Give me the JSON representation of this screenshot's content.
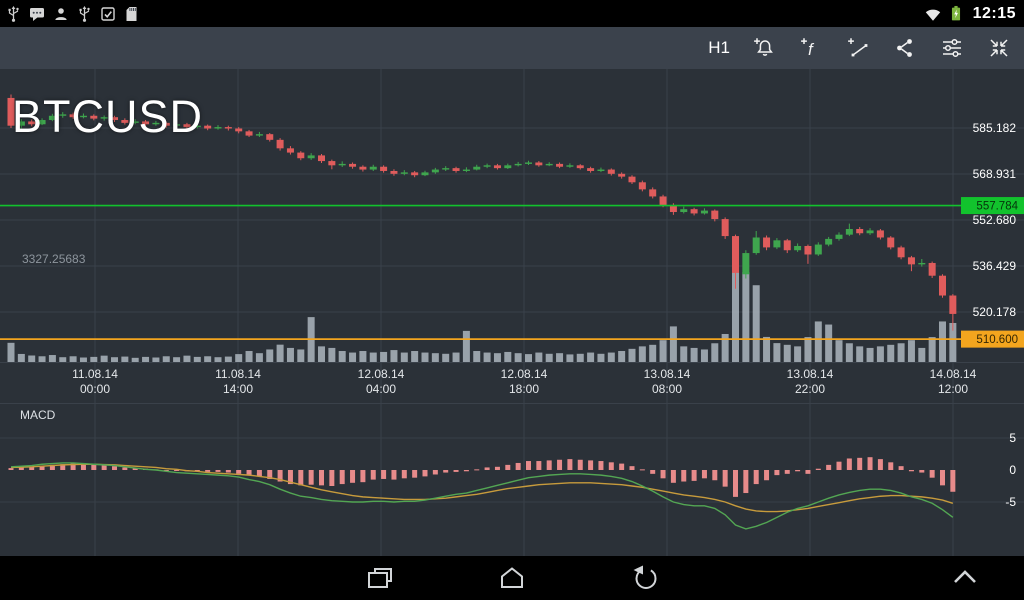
{
  "status_bar": {
    "time": "12:15",
    "left_icons": [
      "usb-icon",
      "message-icon",
      "user-icon",
      "usb-connected-icon",
      "download-complete-icon",
      "sd-card-icon"
    ],
    "right_icons": [
      "wifi-icon",
      "battery-icon"
    ]
  },
  "toolbar": {
    "timeframe_label": "H1",
    "icons": [
      "alarm-add-icon",
      "indicator-add-icon",
      "object-add-icon",
      "share-icon",
      "chart-settings-icon",
      "collapse-icon"
    ]
  },
  "chart": {
    "symbol": "BTCUSD",
    "volume_scale_label": "3327.25683",
    "indicator_label": "MACD",
    "price_axis_labels": [
      "585.182",
      "568.931",
      "552.680",
      "536.429",
      "520.178"
    ],
    "price_axis_values": [
      585.182,
      568.931,
      552.68,
      536.429,
      520.178
    ],
    "level_lines": [
      {
        "label": "557.784",
        "value": 557.784,
        "color": "#12c22d",
        "text_color": "#06330c"
      },
      {
        "label": "510.600",
        "value": 510.6,
        "color": "#f3a51e",
        "text_color": "#342703"
      }
    ],
    "time_axis": [
      {
        "date": "11.08.14",
        "time": "00:00"
      },
      {
        "date": "11.08.14",
        "time": "14:00"
      },
      {
        "date": "12.08.14",
        "time": "04:00"
      },
      {
        "date": "12.08.14",
        "time": "18:00"
      },
      {
        "date": "13.08.14",
        "time": "08:00"
      },
      {
        "date": "13.08.14",
        "time": "22:00"
      },
      {
        "date": "14.08.14",
        "time": "12:00"
      }
    ],
    "macd_axis_labels": [
      "5",
      "0",
      "-5"
    ],
    "macd_axis_values": [
      5,
      0,
      -5
    ]
  },
  "colors": {
    "candle_up": "#3fa64e",
    "candle_down": "#e05c5c",
    "volume": "#a9b2ba",
    "macd_hist": "#e78b8b",
    "macd_line": "#53a653",
    "signal_line": "#c79b3c",
    "grid": "#3a414a"
  },
  "chart_data": {
    "type": "candlestick",
    "symbol": "BTCUSD",
    "timeframe": "H1",
    "x_axis": [
      "11.08.14 00:00",
      "11.08.14 14:00",
      "12.08.14 04:00",
      "12.08.14 18:00",
      "13.08.14 08:00",
      "13.08.14 22:00",
      "14.08.14 12:00"
    ],
    "price_axis_ticks": [
      585.182,
      568.931,
      552.68,
      536.429,
      520.178
    ],
    "level_lines": [
      557.784,
      510.6
    ],
    "volume_scale_max": 3327.25683,
    "candles": [
      [
        595.8,
        597.0,
        585.2,
        586.0
      ],
      [
        586.0,
        588.3,
        585.0,
        587.5
      ],
      [
        587.5,
        588.2,
        585.8,
        586.5
      ],
      [
        586.5,
        588.6,
        586.2,
        588.0
      ],
      [
        588.0,
        590.2,
        587.6,
        589.5
      ],
      [
        589.5,
        590.8,
        588.8,
        590.0
      ],
      [
        590.0,
        590.6,
        588.4,
        589.0
      ],
      [
        589.0,
        590.3,
        588.6,
        589.5
      ],
      [
        589.5,
        590.0,
        587.9,
        588.5
      ],
      [
        588.5,
        589.6,
        587.8,
        589.0
      ],
      [
        589.0,
        589.5,
        587.3,
        588.0
      ],
      [
        588.0,
        588.6,
        586.4,
        587.0
      ],
      [
        587.0,
        588.3,
        586.5,
        587.5
      ],
      [
        587.5,
        588.0,
        585.9,
        586.5
      ],
      [
        586.5,
        587.7,
        586.0,
        587.0
      ],
      [
        587.0,
        587.4,
        585.3,
        586.0
      ],
      [
        586.0,
        587.2,
        585.5,
        586.5
      ],
      [
        586.5,
        587.0,
        584.9,
        585.5
      ],
      [
        585.5,
        586.7,
        585.0,
        586.0
      ],
      [
        586.0,
        586.4,
        584.4,
        585.0
      ],
      [
        585.0,
        586.2,
        584.6,
        585.5
      ],
      [
        585.5,
        586.0,
        584.3,
        585.0
      ],
      [
        585.0,
        585.5,
        583.3,
        584.0
      ],
      [
        584.0,
        584.5,
        582.0,
        582.5
      ],
      [
        582.5,
        583.8,
        582.0,
        583.0
      ],
      [
        583.0,
        583.4,
        580.4,
        581.0
      ],
      [
        581.0,
        581.6,
        577.2,
        578.0
      ],
      [
        578.0,
        578.8,
        575.8,
        576.5
      ],
      [
        576.5,
        577.0,
        573.8,
        574.5
      ],
      [
        574.5,
        576.3,
        573.9,
        575.5
      ],
      [
        575.5,
        576.0,
        572.8,
        573.5
      ],
      [
        573.5,
        574.0,
        570.6,
        572.0
      ],
      [
        572.0,
        573.4,
        571.4,
        572.5
      ],
      [
        572.5,
        573.0,
        570.8,
        571.5
      ],
      [
        571.5,
        572.0,
        569.8,
        570.5
      ],
      [
        570.5,
        572.2,
        570.0,
        571.5
      ],
      [
        571.5,
        572.0,
        569.4,
        570.0
      ],
      [
        570.0,
        570.6,
        568.3,
        569.0
      ],
      [
        569.0,
        570.3,
        568.5,
        569.5
      ],
      [
        569.5,
        570.0,
        567.8,
        568.5
      ],
      [
        568.5,
        570.1,
        568.2,
        569.5
      ],
      [
        569.5,
        571.1,
        569.0,
        570.5
      ],
      [
        570.5,
        571.7,
        570.0,
        571.0
      ],
      [
        571.0,
        571.5,
        569.4,
        570.0
      ],
      [
        570.0,
        571.3,
        569.6,
        570.5
      ],
      [
        570.5,
        572.2,
        570.2,
        571.5
      ],
      [
        571.5,
        572.6,
        571.0,
        572.0
      ],
      [
        572.0,
        572.5,
        570.5,
        571.0
      ],
      [
        571.0,
        572.6,
        570.7,
        572.0
      ],
      [
        572.0,
        573.2,
        571.6,
        572.5
      ],
      [
        572.5,
        573.6,
        572.1,
        573.0
      ],
      [
        573.0,
        573.5,
        571.5,
        572.0
      ],
      [
        572.0,
        573.1,
        571.7,
        572.5
      ],
      [
        572.5,
        573.0,
        571.0,
        571.5
      ],
      [
        571.5,
        572.7,
        571.1,
        572.0
      ],
      [
        572.0,
        572.4,
        570.5,
        571.0
      ],
      [
        571.0,
        571.5,
        569.4,
        570.0
      ],
      [
        570.0,
        571.2,
        569.6,
        570.5
      ],
      [
        570.5,
        570.9,
        568.4,
        569.0
      ],
      [
        569.0,
        569.5,
        567.3,
        568.0
      ],
      [
        568.0,
        568.5,
        565.4,
        566.0
      ],
      [
        566.0,
        566.6,
        562.8,
        563.5
      ],
      [
        563.5,
        564.2,
        560.3,
        561.0
      ],
      [
        561.0,
        561.6,
        557.2,
        558.0
      ],
      [
        558.0,
        558.6,
        554.5,
        555.5
      ],
      [
        555.5,
        557.4,
        555.0,
        556.5
      ],
      [
        556.5,
        557.0,
        554.3,
        555.0
      ],
      [
        555.0,
        556.8,
        554.6,
        556.0
      ],
      [
        556.0,
        556.4,
        552.2,
        553.0
      ],
      [
        553.0,
        553.6,
        546.0,
        547.0
      ],
      [
        547.0,
        547.5,
        528.4,
        534.0
      ],
      [
        533.5,
        542.0,
        532.0,
        541.0
      ],
      [
        541.0,
        548.8,
        540.4,
        546.5
      ],
      [
        546.5,
        547.2,
        542.0,
        543.0
      ],
      [
        543.0,
        546.3,
        542.4,
        545.5
      ],
      [
        545.5,
        546.0,
        541.0,
        542.0
      ],
      [
        542.0,
        544.4,
        541.4,
        543.5
      ],
      [
        543.5,
        544.0,
        537.2,
        540.5
      ],
      [
        540.5,
        544.8,
        540.0,
        544.0
      ],
      [
        544.0,
        546.7,
        543.4,
        546.0
      ],
      [
        546.0,
        548.3,
        545.4,
        547.5
      ],
      [
        547.5,
        551.4,
        547.0,
        549.5
      ],
      [
        549.5,
        550.2,
        547.3,
        548.0
      ],
      [
        548.0,
        549.8,
        547.4,
        549.0
      ],
      [
        549.0,
        549.5,
        545.8,
        546.5
      ],
      [
        546.5,
        547.0,
        542.3,
        543.0
      ],
      [
        543.0,
        543.6,
        538.8,
        539.5
      ],
      [
        539.5,
        540.0,
        534.6,
        537.0
      ],
      [
        537.0,
        538.9,
        536.2,
        537.5
      ],
      [
        537.5,
        538.0,
        532.2,
        533.0
      ],
      [
        533.0,
        533.5,
        525.2,
        526.0
      ],
      [
        526.0,
        526.5,
        513.6,
        519.5
      ]
    ],
    "volumes": [
      620,
      260,
      210,
      185,
      225,
      155,
      185,
      145,
      165,
      205,
      155,
      175,
      135,
      165,
      145,
      185,
      155,
      205,
      165,
      185,
      155,
      175,
      255,
      355,
      285,
      405,
      560,
      455,
      405,
      1450,
      505,
      455,
      355,
      305,
      355,
      305,
      325,
      385,
      305,
      355,
      305,
      285,
      265,
      305,
      1005,
      355,
      305,
      285,
      325,
      285,
      255,
      305,
      265,
      285,
      245,
      265,
      305,
      265,
      305,
      355,
      425,
      505,
      555,
      705,
      1150,
      505,
      455,
      405,
      605,
      905,
      3100,
      2900,
      2480,
      810,
      610,
      555,
      505,
      805,
      1310,
      1210,
      705,
      605,
      505,
      455,
      505,
      555,
      605,
      705,
      455,
      805,
      1310,
      1260
    ],
    "macd": {
      "axis_ticks": [
        5,
        0,
        -5
      ],
      "histogram": [
        0.3,
        0.4,
        0.5,
        0.6,
        0.8,
        0.9,
        1.0,
        0.9,
        0.8,
        0.7,
        0.6,
        0.4,
        0.3,
        0.2,
        0.1,
        0.0,
        -0.1,
        -0.2,
        -0.2,
        -0.3,
        -0.3,
        -0.4,
        -0.6,
        -0.8,
        -1.0,
        -1.4,
        -1.8,
        -2.2,
        -2.4,
        -2.3,
        -2.4,
        -2.5,
        -2.2,
        -2.0,
        -1.9,
        -1.5,
        -1.4,
        -1.5,
        -1.3,
        -1.2,
        -1.0,
        -0.7,
        -0.4,
        -0.3,
        -0.2,
        0.1,
        0.4,
        0.5,
        0.8,
        1.1,
        1.4,
        1.4,
        1.5,
        1.6,
        1.7,
        1.6,
        1.5,
        1.4,
        1.2,
        1.0,
        0.6,
        0.1,
        -0.6,
        -1.3,
        -2.0,
        -1.8,
        -1.7,
        -1.3,
        -1.6,
        -2.6,
        -4.2,
        -3.6,
        -2.2,
        -1.6,
        -0.8,
        -0.6,
        -0.2,
        -0.6,
        0.2,
        0.8,
        1.3,
        1.8,
        1.9,
        2.0,
        1.7,
        1.2,
        0.6,
        -0.2,
        -0.4,
        -1.2,
        -2.4,
        -3.4
      ],
      "macd_line": [
        0.5,
        0.6,
        0.7,
        0.9,
        1.0,
        1.1,
        1.1,
        1.0,
        0.9,
        0.8,
        0.7,
        0.5,
        0.3,
        0.1,
        0.0,
        -0.2,
        -0.4,
        -0.5,
        -0.6,
        -0.7,
        -0.8,
        -0.9,
        -1.1,
        -1.5,
        -1.8,
        -2.3,
        -3.0,
        -3.6,
        -4.1,
        -4.3,
        -4.6,
        -4.8,
        -4.9,
        -5.0,
        -5.0,
        -4.9,
        -4.9,
        -5.0,
        -4.9,
        -4.9,
        -4.7,
        -4.4,
        -4.1,
        -3.8,
        -3.6,
        -3.2,
        -2.8,
        -2.4,
        -2.0,
        -1.6,
        -1.2,
        -1.0,
        -0.8,
        -0.7,
        -0.6,
        -0.6,
        -0.7,
        -0.8,
        -1.0,
        -1.3,
        -1.8,
        -2.5,
        -3.3,
        -4.2,
        -5.0,
        -5.4,
        -5.6,
        -5.6,
        -6.0,
        -7.0,
        -8.6,
        -9.2,
        -8.8,
        -8.2,
        -7.4,
        -6.6,
        -6.0,
        -5.6,
        -5.0,
        -4.4,
        -3.9,
        -3.5,
        -3.2,
        -3.0,
        -3.0,
        -3.2,
        -3.6,
        -4.2,
        -4.6,
        -5.2,
        -6.2,
        -7.4
      ],
      "signal_line": [
        0.4,
        0.45,
        0.5,
        0.6,
        0.7,
        0.8,
        0.85,
        0.9,
        0.9,
        0.85,
        0.8,
        0.7,
        0.6,
        0.5,
        0.4,
        0.2,
        0.1,
        -0.1,
        -0.2,
        -0.4,
        -0.5,
        -0.6,
        -0.7,
        -0.8,
        -1.0,
        -1.2,
        -1.5,
        -1.9,
        -2.3,
        -2.7,
        -3.1,
        -3.4,
        -3.7,
        -4.0,
        -4.2,
        -4.3,
        -4.4,
        -4.5,
        -4.6,
        -4.6,
        -4.6,
        -4.5,
        -4.4,
        -4.2,
        -4.0,
        -3.8,
        -3.5,
        -3.2,
        -2.9,
        -2.7,
        -2.5,
        -2.3,
        -2.2,
        -2.1,
        -2.0,
        -2.0,
        -2.0,
        -2.1,
        -2.2,
        -2.3,
        -2.5,
        -2.7,
        -3.0,
        -3.3,
        -3.6,
        -3.9,
        -4.1,
        -4.3,
        -4.6,
        -5.0,
        -5.6,
        -6.1,
        -6.4,
        -6.5,
        -6.5,
        -6.4,
        -6.2,
        -6.0,
        -5.7,
        -5.4,
        -5.1,
        -4.8,
        -4.5,
        -4.3,
        -4.1,
        -4.0,
        -4.0,
        -4.1,
        -4.2,
        -4.4,
        -4.7,
        -5.2
      ]
    }
  },
  "nav_bar": {
    "icons": [
      "recents-icon",
      "home-icon",
      "back-icon",
      "expand-icon"
    ]
  }
}
